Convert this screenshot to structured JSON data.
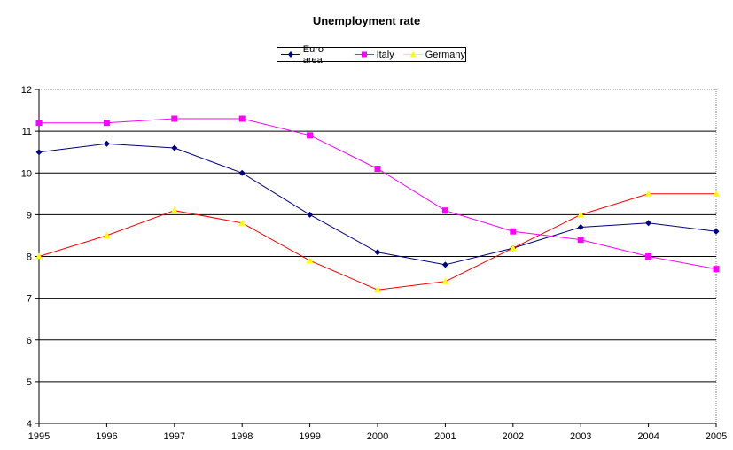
{
  "chart_data": {
    "type": "line",
    "title": "Unemployment rate",
    "xlabel": "",
    "ylabel": "",
    "x": [
      "1995",
      "1996",
      "1997",
      "1998",
      "1999",
      "2000",
      "2001",
      "2002",
      "2003",
      "2004",
      "2005"
    ],
    "ylim": [
      4,
      12
    ],
    "yticks": [
      4,
      5,
      6,
      7,
      8,
      9,
      10,
      11,
      12
    ],
    "grid": true,
    "legend_position": "top-center",
    "series": [
      {
        "name": "Euro area",
        "values": [
          10.5,
          10.7,
          10.6,
          10.0,
          9.0,
          8.1,
          7.8,
          8.2,
          8.7,
          8.8,
          8.6
        ],
        "line_color": "#000080",
        "marker_color": "#000080",
        "marker": "diamond"
      },
      {
        "name": "Italy",
        "values": [
          11.2,
          11.2,
          11.3,
          11.3,
          10.9,
          10.1,
          9.1,
          8.6,
          8.4,
          8.0,
          7.7
        ],
        "line_color": "#ff00ff",
        "marker_color": "#ff00ff",
        "marker": "square"
      },
      {
        "name": "Germany",
        "values": [
          8.0,
          8.5,
          9.1,
          8.8,
          7.9,
          7.2,
          7.4,
          8.2,
          9.0,
          9.5,
          9.5
        ],
        "line_color": "#ff0000",
        "marker_color": "#ffff00",
        "marker": "triangle"
      }
    ]
  }
}
